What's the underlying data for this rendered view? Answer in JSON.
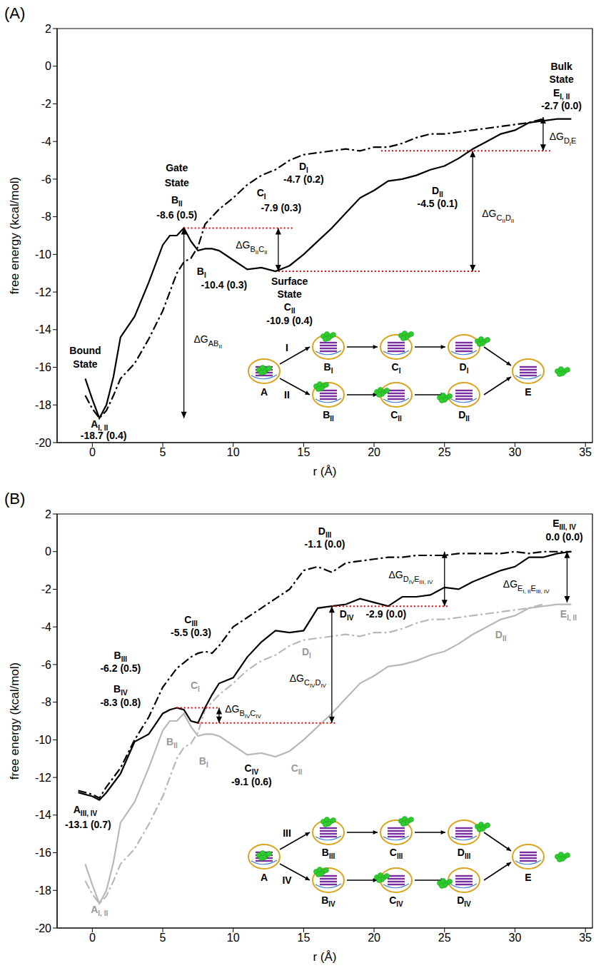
{
  "chart_data": [
    {
      "type": "line",
      "panel": "(A)",
      "x_label": "r (Å)",
      "y_label": "free energy (kcal/mol)",
      "xlim": [
        -2.5,
        35.5
      ],
      "xticks": [
        0,
        5,
        10,
        15,
        20,
        25,
        30,
        35
      ],
      "ylim": [
        -20,
        2
      ],
      "yticks": [
        -20,
        -18,
        -16,
        -14,
        -12,
        -10,
        -8,
        -6,
        -4,
        -2,
        0,
        2
      ],
      "x": [
        -1,
        -0.5,
        0,
        0.5,
        1,
        1.5,
        2,
        3,
        4,
        5,
        5.5,
        6,
        6.5,
        7,
        7.5,
        8,
        8.5,
        9,
        10,
        11,
        12,
        13,
        14,
        15,
        16,
        17,
        18,
        19,
        20,
        21,
        22,
        23,
        24,
        25,
        26,
        27,
        28,
        29,
        30,
        31,
        32,
        33,
        34
      ],
      "series": [
        {
          "name": "I",
          "color": "#000000",
          "line_style": "dashdot",
          "values": [
            null,
            -17.5,
            -18.2,
            -18.7,
            -18.3,
            -17.5,
            -16.6,
            -15.8,
            -14.5,
            -13.0,
            -12.0,
            -11.0,
            -10.4,
            -10.2,
            -9.6,
            -8.4,
            -8.0,
            -7.6,
            -7.0,
            -6.3,
            -5.8,
            -5.5,
            -5.0,
            -4.7,
            -4.6,
            -4.5,
            -4.4,
            -4.5,
            -4.3,
            -4.3,
            -4.1,
            -3.8,
            -3.6,
            -3.6,
            -3.5,
            -3.4,
            -3.3,
            -3.2,
            -3.1,
            -3.0,
            -2.8,
            null,
            null
          ]
        },
        {
          "name": "II",
          "color": "#000000",
          "line_style": "solid",
          "values": [
            null,
            -16.6,
            -17.7,
            -18.7,
            -18.0,
            -16.5,
            -14.4,
            -13.3,
            -11.5,
            -9.5,
            -9.0,
            -9.0,
            -8.6,
            -9.3,
            -9.8,
            -9.7,
            -9.7,
            -9.8,
            -10.3,
            -10.8,
            -10.7,
            -10.9,
            -10.6,
            -10.0,
            -9.3,
            -8.6,
            -7.8,
            -7.0,
            -6.6,
            -6.1,
            -6.0,
            -5.8,
            -5.5,
            -5.3,
            -4.9,
            -4.4,
            -4.0,
            -3.6,
            -3.4,
            -3.0,
            -2.9,
            -2.8,
            -2.8
          ]
        }
      ],
      "annotations": [
        {
          "text": "Bound",
          "x": -0.5,
          "y": -15.3
        },
        {
          "text": "State",
          "x": -0.5,
          "y": -16.0
        },
        {
          "text": "A",
          "sub": "I, II",
          "x": 0.5,
          "y": -19.22
        },
        {
          "text": "-18.7 (0.4)",
          "x": 0.8,
          "y": -19.82
        },
        {
          "text": "Gate",
          "x": 6.0,
          "y": -5.6
        },
        {
          "text": "State",
          "x": 6.0,
          "y": -6.4
        },
        {
          "text": "B",
          "sub": "II",
          "x": 6.0,
          "y": -7.3
        },
        {
          "text": "-8.6 (0.5)",
          "x": 6.0,
          "y": -8.1
        },
        {
          "text": "B",
          "sub": "I",
          "x": 7.75,
          "y": -11.1
        },
        {
          "text": "-10.4 (0.3)",
          "x": 9.35,
          "y": -11.8
        },
        {
          "text": "C",
          "sub": "I",
          "x": 12.0,
          "y": -6.9
        },
        {
          "text": "-7.9 (0.3)",
          "x": 13.4,
          "y": -7.7
        },
        {
          "text": "D",
          "sub": "I",
          "x": 15,
          "y": -5.5
        },
        {
          "text": "-4.7 (0.2)",
          "x": 15,
          "y": -6.2
        },
        {
          "text": "Surface",
          "x": 14,
          "y": -11.6
        },
        {
          "text": "State",
          "x": 14,
          "y": -12.3
        },
        {
          "text": "C",
          "sub": "II",
          "x": 14,
          "y": -13.0
        },
        {
          "text": "-10.9 (0.4)",
          "x": 14,
          "y": -13.7
        },
        {
          "text": "D",
          "sub": "II",
          "x": 24.5,
          "y": -6.8
        },
        {
          "text": "-4.5 (0.1)",
          "x": 24.5,
          "y": -7.5
        },
        {
          "text": "Bulk",
          "x": 33.3,
          "y": -0.2
        },
        {
          "text": "State",
          "x": 33.3,
          "y": -0.9
        },
        {
          "text": "E",
          "sub": "I, II",
          "x": 33.3,
          "y": -1.6
        },
        {
          "text": "-2.7 (0.0)",
          "x": 33.3,
          "y": -2.3
        },
        {
          "text": "ΔG",
          "sub": [
            [
              "AB",
              "II"
            ]
          ],
          "x": 8.2,
          "y": -14.7
        },
        {
          "text": "ΔG",
          "sub": [
            [
              "B",
              "II"
            ],
            [
              "C",
              "II"
            ]
          ],
          "x": 11.3,
          "y": -9.7
        },
        {
          "text": "ΔG",
          "sub": [
            [
              "C",
              "II"
            ],
            [
              "D",
              "II"
            ]
          ],
          "x": 28.8,
          "y": -8.0
        },
        {
          "text": "ΔG",
          "sub": [
            [
              "D",
              "I"
            ],
            [
              "E"
            ]
          ],
          "x": 33.4,
          "y": -3.9
        }
      ],
      "reference_lines": [
        {
          "y": -8.6,
          "x": [
            6.5,
            14.3
          ]
        },
        {
          "y": -10.9,
          "x": [
            13.2,
            27.5
          ]
        },
        {
          "y": -4.5,
          "x": [
            20.5,
            32.5
          ]
        }
      ],
      "arrows": [
        {
          "x": 6.5,
          "from": -18.7,
          "to": -8.6
        },
        {
          "x": 13.2,
          "from": -10.9,
          "to": -8.6
        },
        {
          "x": 27,
          "from": -10.9,
          "to": -4.5
        },
        {
          "x": 32,
          "from": -4.5,
          "to": -2.7
        }
      ],
      "inset": {
        "start": "A",
        "end": "E",
        "paths": [
          {
            "name": "I",
            "states": [
              {
                "text": "B",
                "sub": "I"
              },
              {
                "text": "C",
                "sub": "I"
              },
              {
                "text": "D",
                "sub": "I"
              }
            ]
          },
          {
            "name": "II",
            "states": [
              {
                "text": "B",
                "sub": "II"
              },
              {
                "text": "C",
                "sub": "II"
              },
              {
                "text": "D",
                "sub": "II"
              }
            ]
          }
        ]
      }
    },
    {
      "type": "line",
      "panel": "(B)",
      "x_label": "r (Å)",
      "y_label": "free energy (kcal/mol)",
      "xlim": [
        -2.5,
        35.5
      ],
      "xticks": [
        0,
        5,
        10,
        15,
        20,
        25,
        30,
        35
      ],
      "ylim": [
        -20,
        2
      ],
      "yticks": [
        -20,
        -18,
        -16,
        -14,
        -12,
        -10,
        -8,
        -6,
        -4,
        -2,
        0,
        2
      ],
      "x": [
        -1,
        -0.5,
        0,
        0.5,
        1,
        1.5,
        2,
        3,
        4,
        5,
        5.5,
        6,
        6.5,
        7,
        7.5,
        8,
        8.5,
        9,
        10,
        11,
        12,
        13,
        14,
        15,
        16,
        17,
        18,
        19,
        20,
        21,
        22,
        23,
        24,
        25,
        26,
        27,
        28,
        29,
        30,
        31,
        32,
        33,
        34
      ],
      "series": [
        {
          "name": "I",
          "color": "#b8b8b8",
          "line_style": "dashdot",
          "values": [
            null,
            -17.5,
            -18.2,
            -18.7,
            -18.3,
            -17.5,
            -16.6,
            -15.8,
            -14.5,
            -13.0,
            -12.0,
            -11.0,
            -10.4,
            -10.2,
            -9.6,
            -8.4,
            -8.0,
            -7.6,
            -7.0,
            -6.3,
            -5.8,
            -5.5,
            -5.0,
            -4.7,
            -4.6,
            -4.5,
            -4.4,
            -4.5,
            -4.3,
            -4.3,
            -4.1,
            -3.8,
            -3.6,
            -3.6,
            -3.5,
            -3.4,
            -3.3,
            -3.2,
            -3.1,
            -3.0,
            -2.8,
            null,
            null
          ]
        },
        {
          "name": "II",
          "color": "#b8b8b8",
          "line_style": "solid",
          "values": [
            null,
            -16.6,
            -17.7,
            -18.7,
            -18.0,
            -16.5,
            -14.4,
            -13.3,
            -11.5,
            -9.5,
            -9.0,
            -9.0,
            -8.6,
            -9.3,
            -9.8,
            -9.7,
            -9.7,
            -9.8,
            -10.3,
            -10.8,
            -10.7,
            -10.9,
            -10.6,
            -10.0,
            -9.3,
            -8.6,
            -7.8,
            -7.0,
            -6.6,
            -6.1,
            -6.0,
            -5.8,
            -5.5,
            -5.3,
            -4.9,
            -4.4,
            -4.0,
            -3.6,
            -3.4,
            -3.0,
            -2.9,
            -2.8,
            -2.8
          ]
        },
        {
          "name": "III",
          "color": "#000000",
          "line_style": "dashdot",
          "values": [
            -12.7,
            -12.8,
            -12.9,
            -13.1,
            -12.5,
            -12.0,
            -11.5,
            -10.0,
            -8.8,
            -7.2,
            -6.7,
            -6.2,
            -5.9,
            -5.6,
            -5.4,
            -5.3,
            -5.4,
            -5.0,
            -4.0,
            -3.5,
            -3.0,
            -2.5,
            -2.0,
            -1.0,
            -0.8,
            -1.1,
            -0.6,
            -0.5,
            -0.4,
            -0.3,
            -0.3,
            -0.2,
            -0.2,
            -0.2,
            -0.1,
            -0.1,
            -0.1,
            -0.1,
            0,
            -0.1,
            0,
            0,
            0
          ]
        },
        {
          "name": "IV",
          "color": "#000000",
          "line_style": "solid",
          "values": [
            -12.8,
            -12.9,
            -13.0,
            -13.2,
            -12.8,
            -12.3,
            -11.8,
            -10.1,
            -9.7,
            -8.6,
            -8.4,
            -8.3,
            -8.4,
            -9.0,
            -9.1,
            -8.3,
            -7.6,
            -7.0,
            -6.7,
            -5.6,
            -4.8,
            -4.2,
            -4.3,
            -4.2,
            -3.0,
            -2.9,
            -2.8,
            -2.5,
            -2.7,
            -2.9,
            -2.4,
            -2.4,
            -2.3,
            -1.9,
            -2.0,
            -1.6,
            -1.3,
            -1.0,
            -0.8,
            -0.3,
            -0.3,
            -0.1,
            0
          ]
        }
      ],
      "annotations": [
        {
          "text": "A",
          "sub": "III, IV",
          "x": -0.5,
          "y": -13.9
        },
        {
          "text": "-13.1 (0.7)",
          "x": -0.3,
          "y": -14.7
        },
        {
          "text": "A",
          "sub": "I, II",
          "x": 0.5,
          "y": -19.22,
          "color": "#999999"
        },
        {
          "text": "B",
          "sub": "III",
          "x": 2.0,
          "y": -5.7
        },
        {
          "text": "-6.2 (0.5)",
          "x": 2.0,
          "y": -6.4
        },
        {
          "text": "B",
          "sub": "IV",
          "x": 2.0,
          "y": -7.5
        },
        {
          "text": "-8.3 (0.8)",
          "x": 2.0,
          "y": -8.2
        },
        {
          "text": "C",
          "sub": "III",
          "x": 7.0,
          "y": -3.8
        },
        {
          "text": "-5.5 (0.3)",
          "x": 7.0,
          "y": -4.5
        },
        {
          "text": "D",
          "sub": "III",
          "x": 16.5,
          "y": 0.9
        },
        {
          "text": "-1.1 (0.0)",
          "x": 16.5,
          "y": 0.2
        },
        {
          "text": "E",
          "sub": "III, IV",
          "x": 33.5,
          "y": 1.3
        },
        {
          "text": "0.0 (0.0)",
          "x": 33.5,
          "y": 0.6
        },
        {
          "text": "C",
          "sub": "IV",
          "x": 11.3,
          "y": -11.7
        },
        {
          "text": "-9.1 (0.6)",
          "x": 11.3,
          "y": -12.4
        },
        {
          "text": "D",
          "sub": "IV",
          "x": 18.05,
          "y": -3.5
        },
        {
          "text": "-2.9 (0.0)",
          "x": 20.85,
          "y": -3.5
        },
        {
          "text": "ΔG",
          "sub": [
            [
              "B",
              "IV"
            ],
            [
              "C",
              "IV"
            ]
          ],
          "x": 10.7,
          "y": -8.55
        },
        {
          "text": "ΔG",
          "sub": [
            [
              "C",
              "IV"
            ],
            [
              "D",
              "IV"
            ]
          ],
          "x": 15.3,
          "y": -6.9
        },
        {
          "text": "ΔG",
          "sub": [
            [
              "D",
              "IV"
            ],
            [
              "E",
              "III, IV"
            ]
          ],
          "x": 22.6,
          "y": -1.4
        },
        {
          "text": "ΔG",
          "sub": [
            [
              "E",
              "I, II"
            ],
            [
              "E",
              "III, IV"
            ]
          ],
          "x": 30.8,
          "y": -1.9
        },
        {
          "text": "B",
          "sub": "I",
          "x": 7.9,
          "y": -11.3,
          "color": "#999999"
        },
        {
          "text": "B",
          "sub": "II",
          "x": 5.65,
          "y": -10.3,
          "color": "#999999"
        },
        {
          "text": "C",
          "sub": "I",
          "x": 7.3,
          "y": -7.3,
          "color": "#999999"
        },
        {
          "text": "C",
          "sub": "II",
          "x": 14.5,
          "y": -11.7,
          "color": "#999999"
        },
        {
          "text": "D",
          "sub": "I",
          "x": 15.2,
          "y": -5.5,
          "color": "#999999"
        },
        {
          "text": "D",
          "sub": "II",
          "x": 29,
          "y": -4.6,
          "color": "#999999"
        },
        {
          "text": "E",
          "sub": "I, II",
          "x": 33.8,
          "y": -3.5,
          "color": "#999999"
        }
      ],
      "reference_lines": [
        {
          "y": -8.3,
          "x": [
            6,
            9
          ]
        },
        {
          "y": -9.1,
          "x": [
            7.5,
            17.3
          ]
        },
        {
          "y": -2.9,
          "x": [
            17,
            25.3
          ]
        }
      ],
      "arrows": [
        {
          "x": 9,
          "from": -8.3,
          "to": -9.1
        },
        {
          "x": 17,
          "from": -9.1,
          "to": -2.9
        },
        {
          "x": 25,
          "from": -2.9,
          "to": 0
        },
        {
          "x": 33.7,
          "from": -2.7,
          "to": 0
        }
      ],
      "inset": {
        "start": "A",
        "end": "E",
        "paths": [
          {
            "name": "III",
            "states": [
              {
                "text": "B",
                "sub": "III"
              },
              {
                "text": "C",
                "sub": "III"
              },
              {
                "text": "D",
                "sub": "III"
              }
            ]
          },
          {
            "name": "IV",
            "states": [
              {
                "text": "B",
                "sub": "IV"
              },
              {
                "text": "C",
                "sub": "IV"
              },
              {
                "text": "D",
                "sub": "IV"
              }
            ]
          }
        ]
      }
    }
  ]
}
